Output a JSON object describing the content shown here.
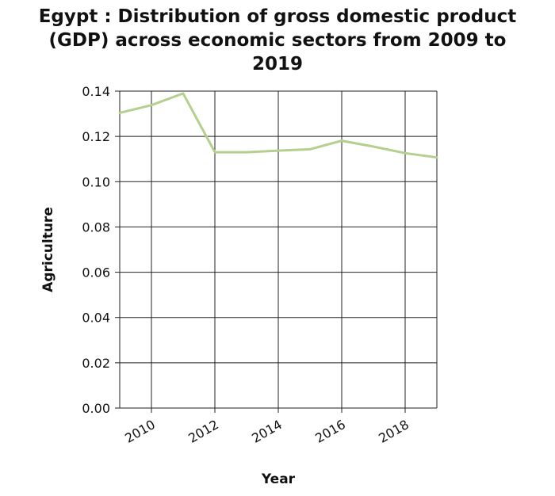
{
  "chart_data": {
    "type": "line",
    "title_lines": [
      "Egypt : Distribution of gross domestic product",
      "(GDP) across economic sectors from 2009 to",
      "2019"
    ],
    "xlabel": "Year",
    "ylabel": "Agriculture",
    "x": [
      2009,
      2010,
      2011,
      2012,
      2013,
      2014,
      2015,
      2016,
      2017,
      2018,
      2019
    ],
    "series": [
      {
        "values": [
          0.1304,
          0.1338,
          0.139,
          0.113,
          0.113,
          0.1137,
          0.1143,
          0.1181,
          0.1155,
          0.1126,
          0.1107
        ],
        "color": "#b5cf8e"
      }
    ],
    "xlim": [
      2009,
      2019
    ],
    "ylim": [
      0,
      0.14
    ],
    "x_ticks": [
      "2010",
      "2012",
      "2014",
      "2016",
      "2018"
    ],
    "y_ticks": [
      "0.00",
      "0.02",
      "0.04",
      "0.06",
      "0.08",
      "0.10",
      "0.12",
      "0.14"
    ],
    "grid": true
  }
}
